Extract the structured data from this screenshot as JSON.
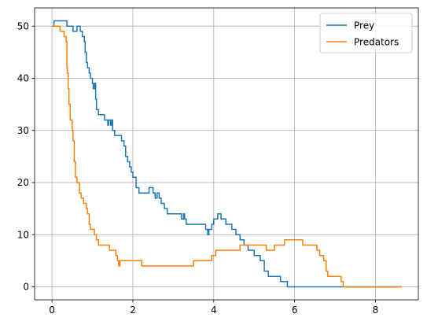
{
  "chart_data": {
    "type": "line",
    "step": true,
    "title": "",
    "xlabel": "",
    "ylabel": "",
    "xlim": [
      -0.43,
      9.06
    ],
    "ylim": [
      -2.5,
      53.5
    ],
    "xticks": [
      0,
      2,
      4,
      6,
      8
    ],
    "yticks": [
      0,
      10,
      20,
      30,
      40,
      50
    ],
    "grid": true,
    "legend_position": "top-right",
    "series": [
      {
        "name": "Prey",
        "color": "#1f77b4",
        "points": [
          [
            0.0,
            50
          ],
          [
            0.05,
            51
          ],
          [
            0.35,
            51
          ],
          [
            0.37,
            50
          ],
          [
            0.5,
            50
          ],
          [
            0.52,
            49
          ],
          [
            0.6,
            49
          ],
          [
            0.62,
            50
          ],
          [
            0.68,
            50
          ],
          [
            0.7,
            49
          ],
          [
            0.75,
            48
          ],
          [
            0.8,
            47
          ],
          [
            0.82,
            45
          ],
          [
            0.85,
            43
          ],
          [
            0.88,
            42
          ],
          [
            0.92,
            41
          ],
          [
            0.95,
            40
          ],
          [
            1.0,
            39
          ],
          [
            1.02,
            38
          ],
          [
            1.05,
            39
          ],
          [
            1.08,
            36
          ],
          [
            1.1,
            34
          ],
          [
            1.15,
            33
          ],
          [
            1.3,
            32
          ],
          [
            1.38,
            31
          ],
          [
            1.4,
            32
          ],
          [
            1.45,
            31
          ],
          [
            1.48,
            32
          ],
          [
            1.5,
            30
          ],
          [
            1.55,
            29
          ],
          [
            1.72,
            28
          ],
          [
            1.78,
            27
          ],
          [
            1.82,
            25
          ],
          [
            1.87,
            24
          ],
          [
            1.92,
            23
          ],
          [
            1.96,
            22
          ],
          [
            2.0,
            21
          ],
          [
            2.08,
            19
          ],
          [
            2.15,
            18
          ],
          [
            2.4,
            19
          ],
          [
            2.5,
            18
          ],
          [
            2.55,
            17
          ],
          [
            2.6,
            18
          ],
          [
            2.65,
            17
          ],
          [
            2.7,
            16
          ],
          [
            2.78,
            15
          ],
          [
            2.85,
            14
          ],
          [
            3.2,
            13
          ],
          [
            3.25,
            14
          ],
          [
            3.28,
            13
          ],
          [
            3.32,
            12
          ],
          [
            3.8,
            11
          ],
          [
            3.85,
            10
          ],
          [
            3.88,
            11
          ],
          [
            3.95,
            12
          ],
          [
            4.0,
            13
          ],
          [
            4.1,
            14
          ],
          [
            4.18,
            13
          ],
          [
            4.3,
            12
          ],
          [
            4.45,
            11
          ],
          [
            4.55,
            10
          ],
          [
            4.65,
            9
          ],
          [
            4.75,
            8
          ],
          [
            4.85,
            7
          ],
          [
            5.0,
            6
          ],
          [
            5.15,
            5
          ],
          [
            5.25,
            3
          ],
          [
            5.35,
            2
          ],
          [
            5.65,
            1
          ],
          [
            5.82,
            0
          ],
          [
            8.65,
            0
          ]
        ]
      },
      {
        "name": "Predators",
        "color": "#ff7f0e",
        "points": [
          [
            0.0,
            50
          ],
          [
            0.18,
            50
          ],
          [
            0.2,
            49
          ],
          [
            0.3,
            48
          ],
          [
            0.35,
            47
          ],
          [
            0.37,
            42
          ],
          [
            0.38,
            41
          ],
          [
            0.4,
            38
          ],
          [
            0.42,
            35
          ],
          [
            0.45,
            32
          ],
          [
            0.5,
            30
          ],
          [
            0.52,
            28
          ],
          [
            0.55,
            24
          ],
          [
            0.58,
            21
          ],
          [
            0.62,
            20
          ],
          [
            0.68,
            18
          ],
          [
            0.72,
            17
          ],
          [
            0.78,
            16
          ],
          [
            0.85,
            15
          ],
          [
            0.88,
            14
          ],
          [
            0.92,
            12
          ],
          [
            0.95,
            11
          ],
          [
            1.05,
            10
          ],
          [
            1.1,
            9
          ],
          [
            1.15,
            8
          ],
          [
            1.42,
            7
          ],
          [
            1.58,
            6
          ],
          [
            1.62,
            5
          ],
          [
            1.65,
            4
          ],
          [
            1.68,
            5
          ],
          [
            2.22,
            4
          ],
          [
            3.45,
            4
          ],
          [
            3.5,
            5
          ],
          [
            3.95,
            6
          ],
          [
            4.05,
            7
          ],
          [
            4.65,
            8
          ],
          [
            5.3,
            7
          ],
          [
            5.5,
            8
          ],
          [
            5.75,
            9
          ],
          [
            6.2,
            8
          ],
          [
            6.55,
            7
          ],
          [
            6.62,
            6
          ],
          [
            6.72,
            5
          ],
          [
            6.78,
            3
          ],
          [
            6.82,
            2
          ],
          [
            7.15,
            1
          ],
          [
            7.2,
            0
          ],
          [
            8.65,
            0
          ]
        ]
      }
    ]
  }
}
